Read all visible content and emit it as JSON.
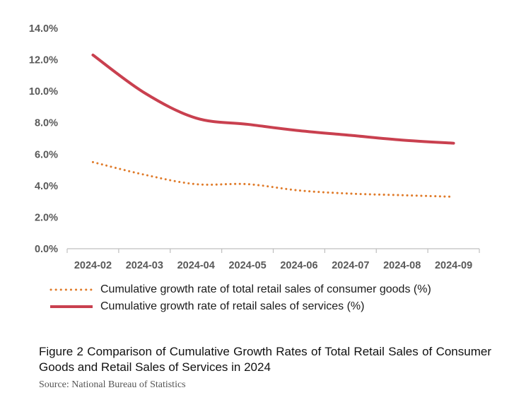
{
  "chart_data": {
    "type": "line",
    "categories": [
      "2024-02",
      "2024-03",
      "2024-04",
      "2024-05",
      "2024-06",
      "2024-07",
      "2024-08",
      "2024-09"
    ],
    "y_ticks": [
      "0.0%",
      "2.0%",
      "4.0%",
      "6.0%",
      "8.0%",
      "10.0%",
      "12.0%",
      "14.0%"
    ],
    "ylim": [
      0,
      14
    ],
    "series": [
      {
        "name": "Cumulative growth rate of total retail sales of consumer goods (%)",
        "values": [
          5.5,
          4.7,
          4.1,
          4.1,
          3.7,
          3.5,
          3.4,
          3.3
        ],
        "color": "#E07B2A",
        "style": "dotted"
      },
      {
        "name": "Cumulative growth rate of retail sales of services (%)",
        "values": [
          12.3,
          9.9,
          8.3,
          7.9,
          7.5,
          7.2,
          6.9,
          6.7
        ],
        "color": "#C9404F",
        "style": "solid"
      }
    ],
    "grid": false,
    "legend_position": "bottom-left"
  },
  "caption": "Figure 2 Comparison of Cumulative Growth Rates of Total Retail Sales of Consumer Goods and Retail Sales of Services in 2024",
  "source": "Source: National Bureau of Statistics"
}
